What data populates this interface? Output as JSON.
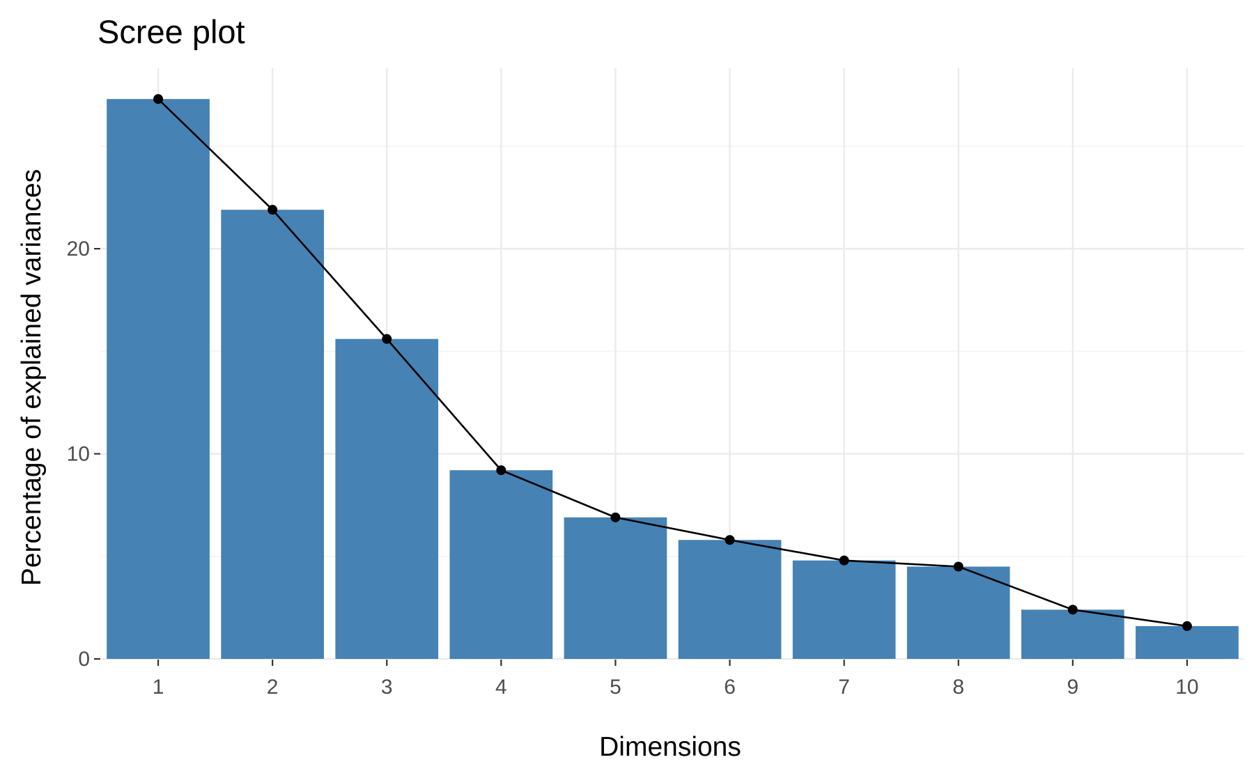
{
  "chart_data": {
    "type": "bar",
    "title": "Scree plot",
    "xlabel": "Dimensions",
    "ylabel": "Percentage of explained variances",
    "categories": [
      "1",
      "2",
      "3",
      "4",
      "5",
      "6",
      "7",
      "8",
      "9",
      "10"
    ],
    "values": [
      27.3,
      21.9,
      15.6,
      9.2,
      6.9,
      5.8,
      4.8,
      4.5,
      2.4,
      1.6
    ],
    "ylim": [
      0,
      28.8
    ],
    "yticks": [
      0,
      10,
      20
    ],
    "grid": true,
    "bar_color": "#4682B4",
    "line_color": "#000000",
    "overlay": "line with points connecting bar tops"
  }
}
